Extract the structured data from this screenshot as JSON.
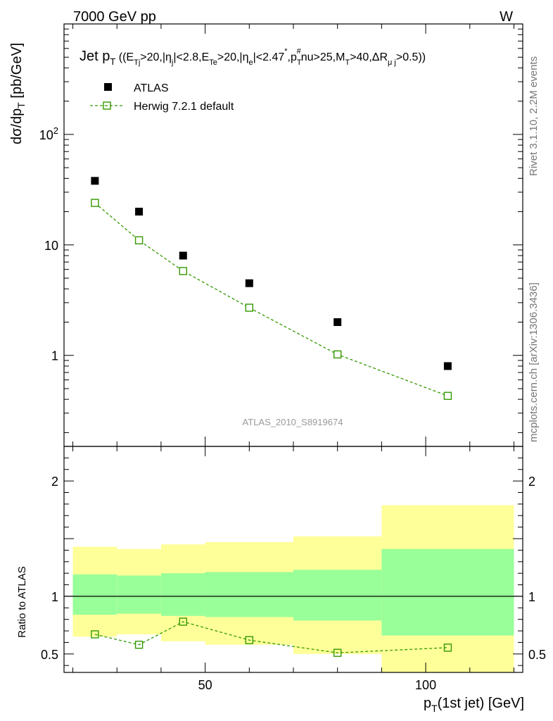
{
  "header": {
    "energy": "7000 GeV pp",
    "process": "W"
  },
  "side_labels": {
    "rivet": "Rivet 3.1.10,  2.2M events",
    "mcplots": "mcplots.cern.ch [arXiv:1306.3436]"
  },
  "watermark": "ATLAS_2010_S8919674",
  "colors": {
    "herwig": "#339900",
    "band_inner": "#99ff99",
    "band_outer": "#ffff99",
    "atlas": "#000000",
    "watermark": "#999999"
  },
  "chart_data": [
    {
      "type": "scatter",
      "title": "Jet p_T ((E_Tj>20,|η_j|<2.8,E_Te>20,|η_e|<2.47*,p_T^#nu>25,M_T>40,ΔR_μj>0.5))",
      "ylabel": "dσ/dp_T [pb/GeV]",
      "yscale": "log",
      "ylim": [
        0.15,
        1000
      ],
      "xlim": [
        18,
        122
      ],
      "y_ticklabels": [
        "1",
        "10",
        "10^2"
      ],
      "legend": [
        "ATLAS",
        "Herwig 7.2.1 default"
      ],
      "legend_position": "top-left",
      "series": [
        {
          "name": "ATLAS",
          "marker": "filled-square",
          "x": [
            25,
            35,
            45,
            60,
            80,
            105
          ],
          "y": [
            38,
            20,
            8.0,
            4.5,
            2.0,
            0.8
          ]
        },
        {
          "name": "Herwig 7.2.1 default",
          "marker": "open-square",
          "line": "dashed",
          "x": [
            25,
            35,
            45,
            60,
            80,
            105
          ],
          "y": [
            24,
            11,
            5.8,
            2.7,
            1.02,
            0.43
          ]
        }
      ]
    },
    {
      "type": "line",
      "ylabel": "Ratio to ATLAS",
      "xlabel": "p_T(1st jet) [GeV]",
      "xlim": [
        18,
        122
      ],
      "ylim": [
        0.34,
        2.3
      ],
      "x_ticklabels": [
        "50",
        "100"
      ],
      "y_ticklabels": [
        "0.5",
        "1",
        "2"
      ],
      "bands": [
        {
          "x0": 20,
          "x1": 30,
          "inner": [
            0.84,
            1.19
          ],
          "outer": [
            0.65,
            1.43
          ]
        },
        {
          "x0": 30,
          "x1": 40,
          "inner": [
            0.85,
            1.18
          ],
          "outer": [
            0.67,
            1.41
          ]
        },
        {
          "x0": 40,
          "x1": 50,
          "inner": [
            0.83,
            1.2
          ],
          "outer": [
            0.61,
            1.45
          ]
        },
        {
          "x0": 50,
          "x1": 70,
          "inner": [
            0.82,
            1.21
          ],
          "outer": [
            0.58,
            1.47
          ]
        },
        {
          "x0": 70,
          "x1": 90,
          "inner": [
            0.79,
            1.23
          ],
          "outer": [
            0.5,
            1.52
          ]
        },
        {
          "x0": 90,
          "x1": 120,
          "inner": [
            0.66,
            1.41
          ],
          "outer": [
            0.34,
            1.79
          ]
        }
      ],
      "series": [
        {
          "name": "Herwig 7.2.1 default",
          "x": [
            25,
            35,
            45,
            60,
            80,
            105
          ],
          "y": [
            0.67,
            0.58,
            0.78,
            0.62,
            0.51,
            0.555
          ]
        }
      ]
    }
  ]
}
